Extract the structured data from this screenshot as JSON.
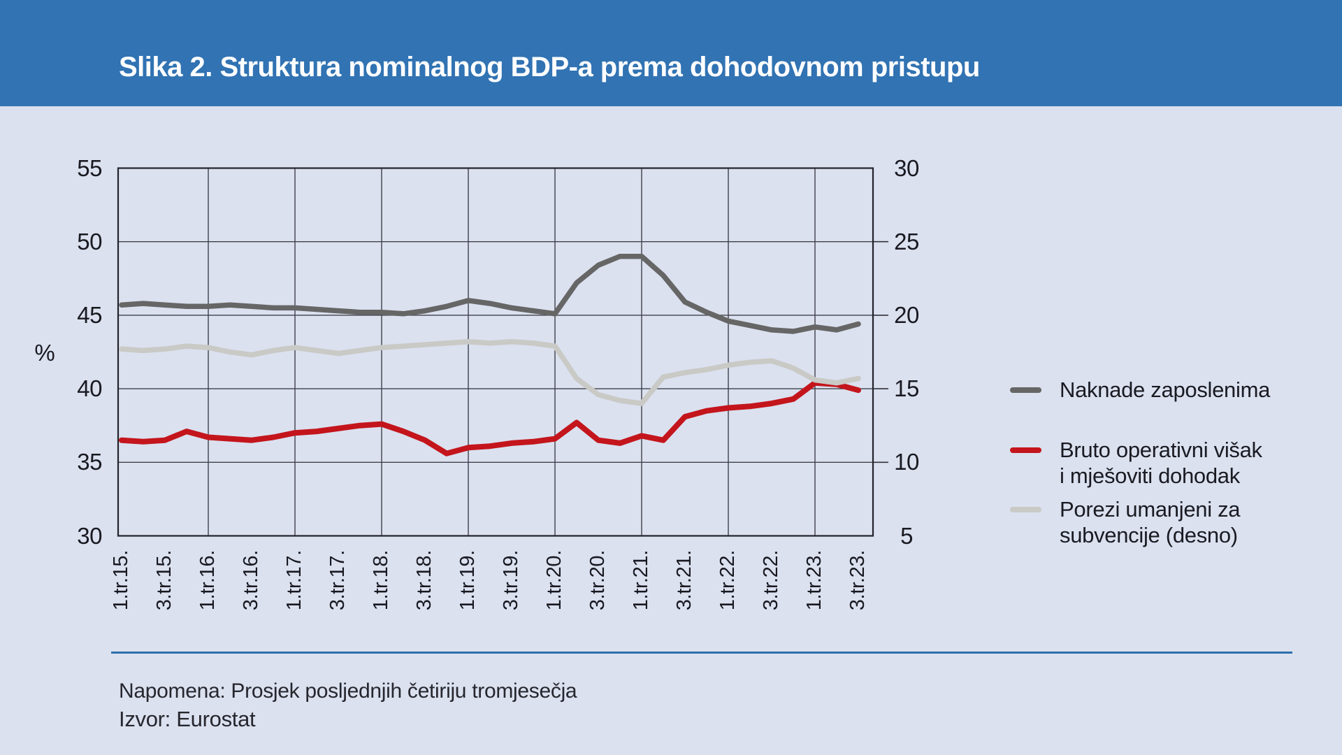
{
  "header": {
    "title": "Slika 2. Struktura nominalnog BDP-a prema dohodovnom pristupu"
  },
  "axes": {
    "left_unit_label": "%",
    "left_ticks": [
      "55",
      "50",
      "45",
      "40",
      "35",
      "30"
    ],
    "right_ticks": [
      "30",
      "25",
      "20",
      "15",
      "10",
      "5"
    ],
    "x_tick_labels": [
      "1.tr.15.",
      "3.tr.15.",
      "1.tr.16.",
      "3.tr.16.",
      "1.tr.17.",
      "3.tr.17.",
      "1.tr.18.",
      "3.tr.18.",
      "1.tr.19.",
      "3.tr.19.",
      "1.tr.20.",
      "3.tr.20.",
      "1.tr.21.",
      "3.tr.21.",
      "1.tr.22.",
      "3.tr.22.",
      "1.tr.23.",
      "3.tr.23."
    ]
  },
  "legend": {
    "items": [
      {
        "lines": [
          "Naknade zaposlenima"
        ],
        "color": "#666666"
      },
      {
        "lines": [
          "Bruto operativni višak",
          "i mješoviti dohodak"
        ],
        "color": "#C4151C"
      },
      {
        "lines": [
          "Porezi umanjeni za",
          "subvencije (desno)"
        ],
        "color": "#C9C9C6"
      }
    ]
  },
  "notes": {
    "note": "Napomena: Prosjek posljednjih četiriju tromjesečja",
    "source": "Izvor: Eurostat"
  },
  "chart_data": {
    "type": "line",
    "title": "Slika 2. Struktura nominalnog BDP-a prema dohodovnom pristupu",
    "x": [
      "1.tr.15.",
      "2.tr.15.",
      "3.tr.15.",
      "4.tr.15.",
      "1.tr.16.",
      "2.tr.16.",
      "3.tr.16.",
      "4.tr.16.",
      "1.tr.17.",
      "2.tr.17.",
      "3.tr.17.",
      "4.tr.17.",
      "1.tr.18.",
      "2.tr.18.",
      "3.tr.18.",
      "4.tr.18.",
      "1.tr.19.",
      "2.tr.19.",
      "3.tr.19.",
      "4.tr.19.",
      "1.tr.20.",
      "2.tr.20.",
      "3.tr.20.",
      "4.tr.20.",
      "1.tr.21.",
      "2.tr.21.",
      "3.tr.21.",
      "4.tr.21.",
      "1.tr.22.",
      "2.tr.22.",
      "3.tr.22.",
      "4.tr.22.",
      "1.tr.23.",
      "2.tr.23.",
      "3.tr.23."
    ],
    "left_axis": {
      "label": "%",
      "range": [
        30,
        55
      ],
      "tick_step": 5
    },
    "right_axis": {
      "range": [
        5,
        30
      ],
      "tick_step": 5
    },
    "grid": {
      "vertical_every_n_quarters": 4,
      "horizontal_every": 5
    },
    "legend_position": "right",
    "series": [
      {
        "name": "Naknade zaposlenima",
        "axis": "left",
        "color": "#666666",
        "values": [
          45.7,
          45.8,
          45.7,
          45.6,
          45.6,
          45.7,
          45.6,
          45.5,
          45.5,
          45.4,
          45.3,
          45.2,
          45.2,
          45.1,
          45.3,
          45.6,
          46.0,
          45.8,
          45.5,
          45.3,
          45.1,
          47.2,
          48.4,
          49.0,
          49.0,
          47.7,
          45.9,
          45.2,
          44.6,
          44.3,
          44.0,
          43.9,
          44.2,
          44.0,
          44.4
        ]
      },
      {
        "name": "Bruto operativni višak i mješoviti dohodak",
        "axis": "left",
        "color": "#C4151C",
        "values": [
          36.5,
          36.4,
          36.5,
          37.1,
          36.7,
          36.6,
          36.5,
          36.7,
          37.0,
          37.1,
          37.3,
          37.5,
          37.6,
          37.1,
          36.5,
          35.6,
          36.0,
          36.1,
          36.3,
          36.4,
          36.6,
          37.7,
          36.5,
          36.3,
          36.8,
          36.5,
          38.1,
          38.5,
          38.7,
          38.8,
          39.0,
          39.3,
          40.4,
          40.3,
          39.9
        ]
      },
      {
        "name": "Porezi umanjeni za subvencije (desno)",
        "axis": "right",
        "color": "#C9C9C6",
        "values": [
          17.7,
          17.6,
          17.7,
          17.9,
          17.8,
          17.5,
          17.3,
          17.6,
          17.8,
          17.6,
          17.4,
          17.6,
          17.8,
          17.9,
          18.0,
          18.1,
          18.2,
          18.1,
          18.2,
          18.1,
          17.9,
          15.7,
          14.6,
          14.2,
          14.0,
          15.8,
          16.1,
          16.3,
          16.6,
          16.8,
          16.9,
          16.4,
          15.6,
          15.4,
          15.7
        ]
      }
    ],
    "note": "Napomena: Prosjek posljednjih četiriju tromjesečja",
    "source": "Izvor: Eurostat"
  }
}
